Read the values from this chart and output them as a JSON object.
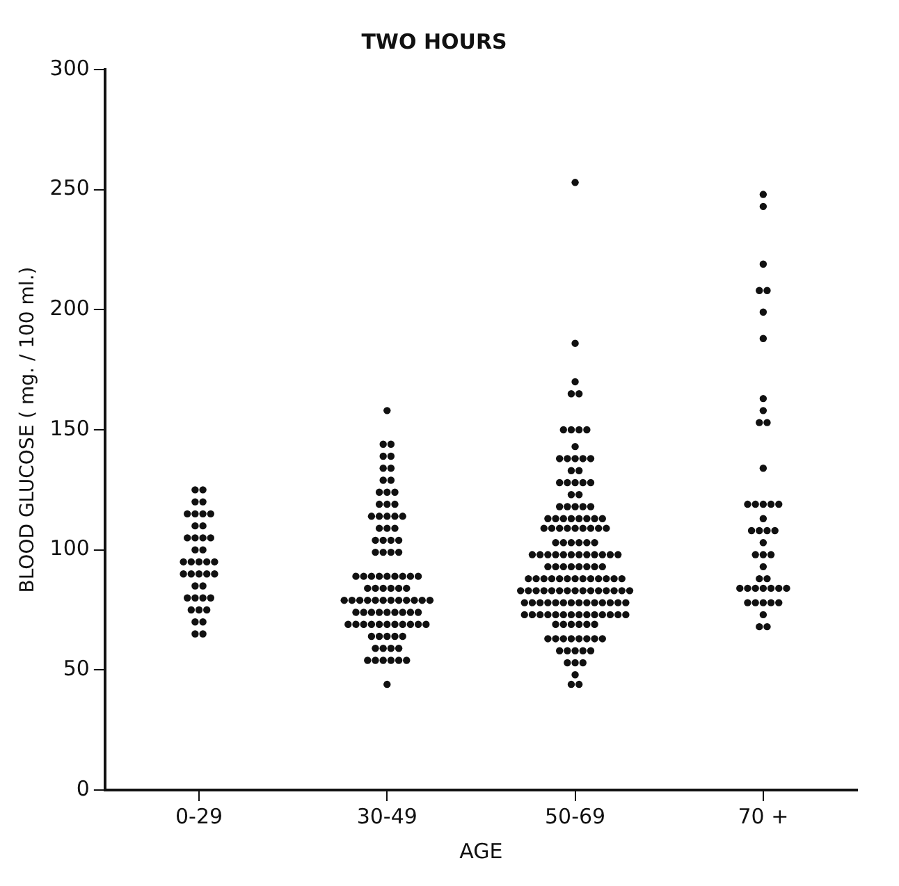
{
  "chart_data": {
    "type": "scatter",
    "title": "TWO HOURS",
    "xlabel": "AGE",
    "ylabel": "BLOOD GLUCOSE ( mg. / 100 ml.)",
    "categories": [
      "0-29",
      "30-49",
      "50-69",
      "70 +"
    ],
    "ylim": [
      0,
      300
    ],
    "yticks": [
      0,
      50,
      100,
      150,
      200,
      250,
      300
    ],
    "grid": false,
    "legend": false,
    "marker": "circle",
    "series": [
      {
        "color": "#111111",
        "x": [
          "0-29",
          "0-29",
          "0-29",
          "0-29",
          "0-29",
          "0-29",
          "0-29",
          "0-29",
          "0-29",
          "0-29",
          "0-29",
          "0-29",
          "0-29",
          "0-29",
          "0-29",
          "0-29",
          "0-29",
          "0-29",
          "0-29",
          "0-29",
          "0-29",
          "0-29",
          "0-29",
          "0-29",
          "0-29",
          "0-29",
          "0-29",
          "0-29",
          "0-29",
          "0-29",
          "0-29",
          "0-29",
          "0-29",
          "0-29",
          "0-29",
          "0-29",
          "0-29",
          "0-29",
          "0-29"
        ],
        "values": [
          125,
          125,
          120,
          120,
          115,
          115,
          115,
          115,
          110,
          110,
          105,
          105,
          105,
          105,
          100,
          100,
          95,
          95,
          95,
          95,
          95,
          90,
          90,
          90,
          90,
          90,
          85,
          85,
          80,
          80,
          80,
          80,
          75,
          75,
          75,
          70,
          70,
          65,
          65
        ]
      },
      {
        "color": "#111111",
        "x": [
          "30-49",
          "30-49",
          "30-49",
          "30-49",
          "30-49",
          "30-49",
          "30-49",
          "30-49",
          "30-49",
          "30-49",
          "30-49",
          "30-49",
          "30-49",
          "30-49",
          "30-49",
          "30-49",
          "30-49",
          "30-49",
          "30-49",
          "30-49",
          "30-49",
          "30-49",
          "30-49",
          "30-49",
          "30-49",
          "30-49",
          "30-49",
          "30-49",
          "30-49",
          "30-49",
          "30-49",
          "30-49",
          "30-49",
          "30-49",
          "30-49",
          "30-49",
          "30-49",
          "30-49",
          "30-49",
          "30-49",
          "30-49",
          "30-49",
          "30-49",
          "30-49",
          "30-49",
          "30-49",
          "30-49",
          "30-49",
          "30-49",
          "30-49",
          "30-49",
          "30-49",
          "30-49",
          "30-49",
          "30-49",
          "30-49",
          "30-49",
          "30-49",
          "30-49",
          "30-49",
          "30-49",
          "30-49",
          "30-49",
          "30-49",
          "30-49",
          "30-49",
          "30-49",
          "30-49",
          "30-49",
          "30-49",
          "30-49",
          "30-49",
          "30-49",
          "30-49",
          "30-49",
          "30-49",
          "30-49",
          "30-49",
          "30-49",
          "30-49",
          "30-49",
          "30-49",
          "30-49",
          "30-49",
          "30-49",
          "30-49",
          "30-49",
          "30-49",
          "30-49",
          "30-49",
          "30-49",
          "30-49",
          "30-49",
          "30-49"
        ],
        "values": [
          158,
          144,
          144,
          139,
          139,
          134,
          134,
          129,
          129,
          124,
          124,
          124,
          119,
          119,
          119,
          114,
          114,
          114,
          114,
          114,
          109,
          109,
          109,
          104,
          104,
          104,
          104,
          99,
          99,
          99,
          99,
          89,
          89,
          89,
          89,
          89,
          89,
          89,
          89,
          89,
          84,
          84,
          84,
          84,
          84,
          84,
          79,
          79,
          79,
          79,
          79,
          79,
          79,
          79,
          79,
          79,
          79,
          79,
          74,
          74,
          74,
          74,
          74,
          74,
          74,
          74,
          74,
          69,
          69,
          69,
          69,
          69,
          69,
          69,
          69,
          69,
          69,
          69,
          64,
          64,
          64,
          64,
          64,
          59,
          59,
          59,
          59,
          54,
          54,
          54,
          54,
          54,
          54,
          44
        ]
      },
      {
        "color": "#111111",
        "x": [
          "50-69",
          "50-69",
          "50-69",
          "50-69",
          "50-69",
          "50-69",
          "50-69",
          "50-69",
          "50-69",
          "50-69",
          "50-69",
          "50-69",
          "50-69",
          "50-69",
          "50-69",
          "50-69",
          "50-69",
          "50-69",
          "50-69",
          "50-69",
          "50-69",
          "50-69",
          "50-69",
          "50-69",
          "50-69",
          "50-69",
          "50-69",
          "50-69",
          "50-69",
          "50-69",
          "50-69",
          "50-69",
          "50-69",
          "50-69",
          "50-69",
          "50-69",
          "50-69",
          "50-69",
          "50-69",
          "50-69",
          "50-69",
          "50-69",
          "50-69",
          "50-69",
          "50-69",
          "50-69",
          "50-69",
          "50-69",
          "50-69",
          "50-69",
          "50-69",
          "50-69",
          "50-69",
          "50-69",
          "50-69",
          "50-69",
          "50-69",
          "50-69",
          "50-69",
          "50-69",
          "50-69",
          "50-69",
          "50-69",
          "50-69",
          "50-69",
          "50-69",
          "50-69",
          "50-69",
          "50-69",
          "50-69",
          "50-69",
          "50-69",
          "50-69",
          "50-69",
          "50-69",
          "50-69",
          "50-69",
          "50-69",
          "50-69",
          "50-69",
          "50-69",
          "50-69",
          "50-69",
          "50-69",
          "50-69",
          "50-69",
          "50-69",
          "50-69",
          "50-69",
          "50-69",
          "50-69",
          "50-69",
          "50-69",
          "50-69",
          "50-69",
          "50-69",
          "50-69",
          "50-69",
          "50-69",
          "50-69",
          "50-69",
          "50-69",
          "50-69",
          "50-69",
          "50-69",
          "50-69",
          "50-69",
          "50-69",
          "50-69",
          "50-69",
          "50-69",
          "50-69",
          "50-69",
          "50-69",
          "50-69",
          "50-69",
          "50-69",
          "50-69",
          "50-69",
          "50-69",
          "50-69",
          "50-69",
          "50-69",
          "50-69",
          "50-69",
          "50-69",
          "50-69",
          "50-69",
          "50-69",
          "50-69",
          "50-69",
          "50-69",
          "50-69",
          "50-69",
          "50-69",
          "50-69",
          "50-69",
          "50-69",
          "50-69",
          "50-69",
          "50-69",
          "50-69",
          "50-69",
          "50-69",
          "50-69",
          "50-69",
          "50-69",
          "50-69",
          "50-69",
          "50-69",
          "50-69",
          "50-69",
          "50-69"
        ],
        "values": [
          253,
          186,
          170,
          165,
          165,
          150,
          150,
          150,
          150,
          143,
          138,
          138,
          138,
          138,
          138,
          133,
          133,
          128,
          128,
          128,
          128,
          128,
          123,
          123,
          118,
          118,
          118,
          118,
          118,
          113,
          113,
          113,
          113,
          113,
          113,
          113,
          113,
          109,
          109,
          109,
          109,
          109,
          109,
          109,
          109,
          109,
          103,
          103,
          103,
          103,
          103,
          103,
          98,
          98,
          98,
          98,
          98,
          98,
          98,
          98,
          98,
          98,
          98,
          98,
          93,
          93,
          93,
          93,
          93,
          93,
          93,
          93,
          88,
          88,
          88,
          88,
          88,
          88,
          88,
          88,
          88,
          88,
          88,
          88,
          88,
          83,
          83,
          83,
          83,
          83,
          83,
          83,
          83,
          83,
          83,
          83,
          83,
          83,
          83,
          83,
          78,
          78,
          78,
          78,
          78,
          78,
          78,
          78,
          78,
          78,
          78,
          78,
          78,
          78,
          73,
          73,
          73,
          73,
          73,
          73,
          73,
          73,
          73,
          73,
          73,
          73,
          73,
          73,
          69,
          69,
          69,
          69,
          69,
          69,
          63,
          63,
          63,
          63,
          63,
          63,
          63,
          63,
          58,
          58,
          58,
          58,
          58,
          53,
          53,
          53,
          48,
          44,
          44
        ]
      },
      {
        "color": "#111111",
        "x": [
          "70 +",
          "70 +",
          "70 +",
          "70 +",
          "70 +",
          "70 +",
          "70 +",
          "70 +",
          "70 +",
          "70 +",
          "70 +",
          "70 +",
          "70 +",
          "70 +",
          "70 +",
          "70 +",
          "70 +",
          "70 +",
          "70 +",
          "70 +",
          "70 +",
          "70 +",
          "70 +",
          "70 +",
          "70 +",
          "70 +",
          "70 +",
          "70 +",
          "70 +",
          "70 +",
          "70 +",
          "70 +",
          "70 +",
          "70 +",
          "70 +",
          "70 +",
          "70 +",
          "70 +",
          "70 +",
          "70 +",
          "70 +",
          "70 +",
          "70 +",
          "70 +"
        ],
        "values": [
          248,
          243,
          219,
          208,
          208,
          199,
          188,
          163,
          158,
          153,
          153,
          134,
          119,
          119,
          119,
          119,
          119,
          113,
          108,
          108,
          108,
          108,
          103,
          98,
          98,
          98,
          93,
          88,
          88,
          84,
          84,
          84,
          84,
          84,
          84,
          84,
          78,
          78,
          78,
          78,
          78,
          73,
          68,
          68
        ]
      }
    ]
  }
}
